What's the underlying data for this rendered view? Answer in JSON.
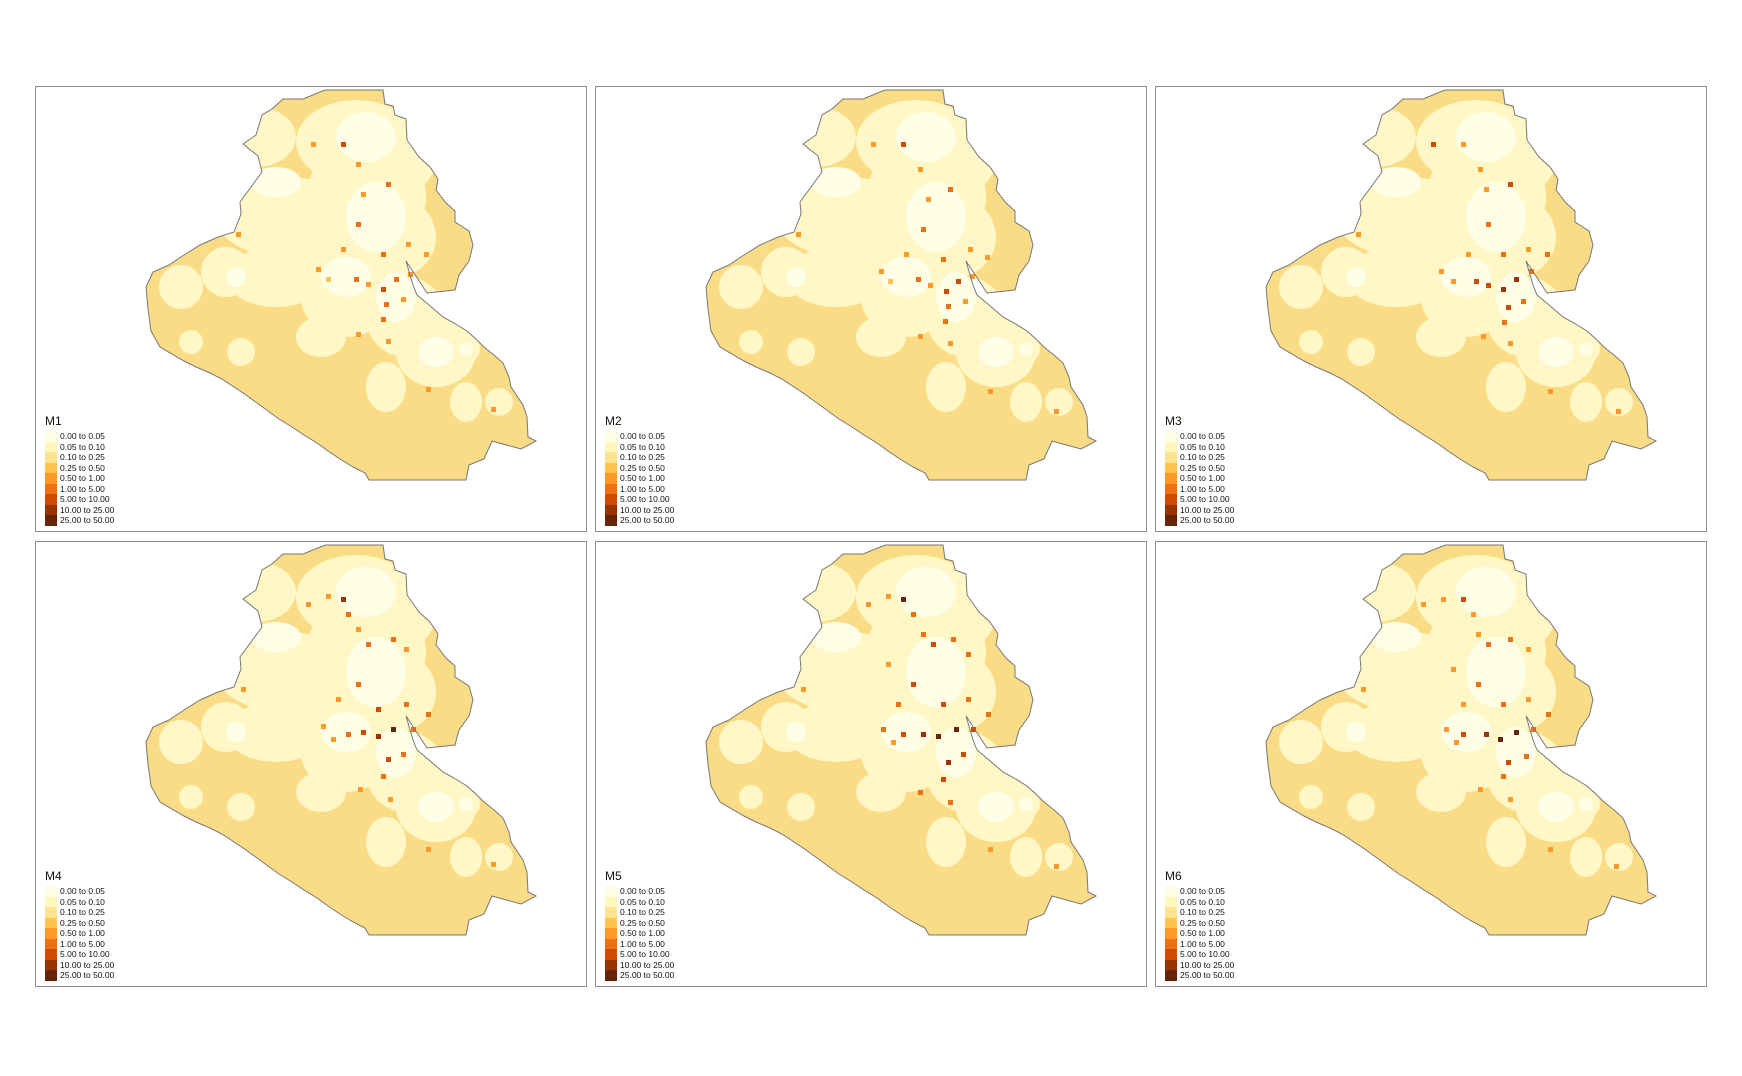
{
  "legend": {
    "classes": [
      {
        "label": "0.00 to 0.05",
        "color": "#ffffe5"
      },
      {
        "label": "0.05 to 0.10",
        "color": "#fff7bc"
      },
      {
        "label": "0.10 to 0.25",
        "color": "#fee391"
      },
      {
        "label": "0.25 to 0.50",
        "color": "#fec44f"
      },
      {
        "label": "0.50 to 1.00",
        "color": "#fe9929"
      },
      {
        "label": "1.00 to 5.00",
        "color": "#ec7014"
      },
      {
        "label": "5.00 to 10.00",
        "color": "#cc4c02"
      },
      {
        "label": "10.00 to 25.00",
        "color": "#993404"
      },
      {
        "label": "25.00 to 50.00",
        "color": "#662506"
      }
    ]
  },
  "colors": {
    "background_fill": "#fbdc86",
    "low_fill": "#fff7c6",
    "lowest_fill": "#ffffe8",
    "outline": "#777777"
  },
  "panels": [
    {
      "title": "M1"
    },
    {
      "title": "M2"
    },
    {
      "title": "M3"
    },
    {
      "title": "M4"
    },
    {
      "title": "M5"
    },
    {
      "title": "M6"
    }
  ]
}
